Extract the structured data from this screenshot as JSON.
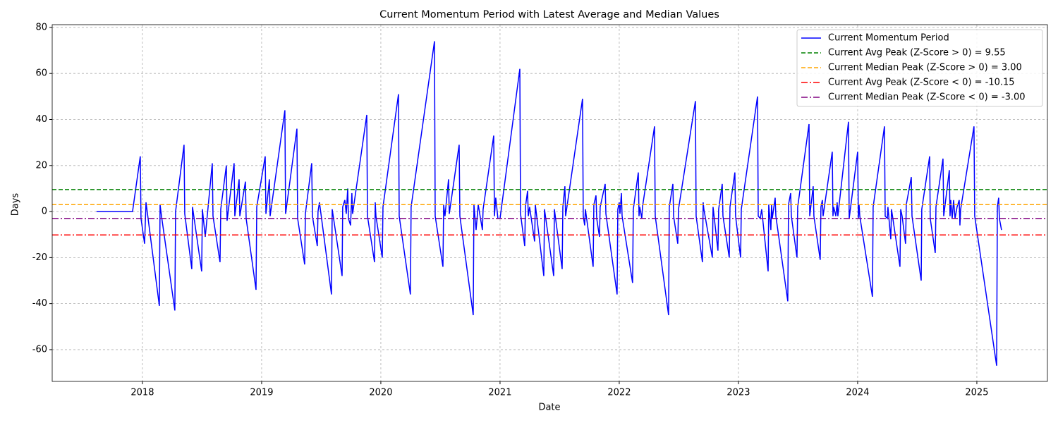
{
  "chart_data": {
    "type": "line",
    "title": "Current Momentum Period with Latest Average and Median Values",
    "xlabel": "Date",
    "ylabel": "Days",
    "xlim": [
      2017.243,
      2025.592
    ],
    "xticks": [
      2018,
      2019,
      2020,
      2021,
      2022,
      2023,
      2024,
      2025
    ],
    "ylim": [
      -73.8,
      81.2
    ],
    "yticks": [
      -60,
      -40,
      -20,
      0,
      20,
      40,
      60,
      80
    ],
    "grid": true,
    "legend": "upper right",
    "x": [
      2017.615,
      2017.917,
      2017.982,
      2017.988,
      2018.018,
      2018.03,
      2018.142,
      2018.148,
      2018.16,
      2018.272,
      2018.278,
      2018.349,
      2018.355,
      2018.414,
      2018.42,
      2018.497,
      2018.503,
      2018.527,
      2018.586,
      2018.592,
      2018.651,
      2018.657,
      2018.704,
      2018.71,
      2018.769,
      2018.775,
      2018.811,
      2018.817,
      2018.864,
      2018.87,
      2018.953,
      2018.959,
      2019.03,
      2019.036,
      2019.065,
      2019.071,
      2019.195,
      2019.201,
      2019.296,
      2019.302,
      2019.361,
      2019.367,
      2019.42,
      2019.426,
      2019.467,
      2019.473,
      2019.485,
      2019.586,
      2019.592,
      2019.675,
      2019.68,
      2019.698,
      2019.71,
      2019.722,
      2019.728,
      2019.746,
      2019.757,
      2019.763,
      2019.882,
      2019.888,
      2019.947,
      2019.953,
      2019.959,
      2020.012,
      2020.018,
      2020.148,
      2020.154,
      2020.248,
      2020.254,
      2020.45,
      2020.456,
      2020.521,
      2020.527,
      2020.538,
      2020.568,
      2020.574,
      2020.657,
      2020.663,
      2020.775,
      2020.781,
      2020.799,
      2020.817,
      2020.852,
      2020.858,
      2020.947,
      2020.953,
      2020.964,
      2020.982,
      2021.0,
      2021.166,
      2021.172,
      2021.207,
      2021.213,
      2021.231,
      2021.237,
      2021.248,
      2021.29,
      2021.296,
      2021.367,
      2021.373,
      2021.45,
      2021.456,
      2021.521,
      2021.527,
      2021.544,
      2021.55,
      2021.692,
      2021.698,
      2021.71,
      2021.716,
      2021.781,
      2021.787,
      2021.805,
      2021.811,
      2021.834,
      2021.84,
      2021.882,
      2021.888,
      2021.982,
      2021.988,
      2022.0,
      2022.006,
      2022.018,
      2022.024,
      2022.112,
      2022.118,
      2022.16,
      2022.166,
      2022.172,
      2022.189,
      2022.195,
      2022.296,
      2022.302,
      2022.414,
      2022.42,
      2022.45,
      2022.456,
      2022.491,
      2022.497,
      2022.639,
      2022.645,
      2022.698,
      2022.704,
      2022.71,
      2022.781,
      2022.787,
      2022.828,
      2022.834,
      2022.864,
      2022.87,
      2022.923,
      2022.929,
      2022.97,
      2022.976,
      2023.018,
      2023.024,
      2023.16,
      2023.166,
      2023.183,
      2023.195,
      2023.249,
      2023.254,
      2023.272,
      2023.278,
      2023.284,
      2023.308,
      2023.314,
      2023.414,
      2023.42,
      2023.438,
      2023.444,
      2023.491,
      2023.497,
      2023.592,
      2023.598,
      2023.627,
      2023.633,
      2023.686,
      2023.692,
      2023.704,
      2023.71,
      2023.787,
      2023.793,
      2023.799,
      2023.817,
      2023.828,
      2023.834,
      2023.923,
      2023.929,
      2024.0,
      2024.006,
      2024.012,
      2024.018,
      2024.124,
      2024.13,
      2024.225,
      2024.231,
      2024.249,
      2024.254,
      2024.278,
      2024.284,
      2024.355,
      2024.361,
      2024.373,
      2024.402,
      2024.408,
      2024.45,
      2024.456,
      2024.533,
      2024.538,
      2024.604,
      2024.609,
      2024.651,
      2024.657,
      2024.716,
      2024.722,
      2024.769,
      2024.775,
      2024.781,
      2024.793,
      2024.805,
      2024.817,
      2024.834,
      2024.852,
      2024.858,
      2024.864,
      2024.976,
      2024.982,
      2025.166,
      2025.172,
      2025.183,
      2025.189,
      2025.207
    ],
    "series": [
      {
        "name": "Current Momentum Period",
        "color": "#0000ff",
        "values": [
          0,
          0,
          24,
          -3,
          -14,
          4,
          -41,
          3,
          -2,
          -43,
          0,
          29,
          -1,
          -25,
          2,
          -26,
          1,
          -11,
          21,
          -2,
          -22,
          1,
          20,
          -4,
          21,
          -2,
          14,
          -2,
          13,
          -3,
          -34,
          2,
          24,
          -1,
          14,
          -2,
          44,
          -1,
          36,
          -3,
          -23,
          -1,
          21,
          -2,
          -15,
          0,
          4,
          -36,
          1,
          -28,
          2,
          5,
          -1,
          10,
          -3,
          -6,
          8,
          -1,
          42,
          -2,
          -22,
          4,
          -2,
          -20,
          2,
          51,
          -2,
          -36,
          2,
          74,
          -2,
          -24,
          3,
          -2,
          14,
          -1,
          29,
          -2,
          -45,
          3,
          -8,
          3,
          -8,
          1,
          33,
          -2,
          6,
          -3,
          -3,
          62,
          -1,
          -15,
          2,
          9,
          -2,
          2,
          -13,
          3,
          -28,
          1,
          -28,
          1,
          -25,
          2,
          11,
          -2,
          49,
          -2,
          -6,
          1,
          -24,
          3,
          7,
          -3,
          -11,
          2,
          12,
          -1,
          -36,
          1,
          4,
          -1,
          8,
          -2,
          -31,
          1,
          17,
          -2,
          2,
          -3,
          2,
          37,
          -2,
          -45,
          2,
          12,
          -2,
          -14,
          1,
          48,
          -2,
          -22,
          4,
          1,
          -20,
          2,
          -17,
          1,
          12,
          -2,
          -20,
          2,
          17,
          -2,
          -20,
          1,
          50,
          -2,
          -3,
          1,
          -26,
          3,
          -8,
          3,
          -3,
          6,
          -2,
          -39,
          3,
          8,
          -2,
          -20,
          2,
          38,
          -2,
          11,
          -2,
          -21,
          2,
          5,
          -2,
          26,
          -2,
          2,
          -2,
          4,
          -2,
          39,
          -3,
          26,
          -3,
          3,
          -2,
          -37,
          2,
          37,
          -2,
          -3,
          2,
          -12,
          1,
          -24,
          1,
          -2,
          -14,
          3,
          15,
          -2,
          -30,
          1,
          24,
          -3,
          -18,
          2,
          23,
          -2,
          18,
          -2,
          5,
          -3,
          5,
          -3,
          2,
          5,
          -6,
          1,
          37,
          -2,
          -67,
          2,
          6,
          -3,
          -8
        ]
      }
    ],
    "hlines": [
      {
        "name": "Current Avg Peak (Z-Score > 0) = 9.55",
        "color": "#008000",
        "y": 9.55,
        "style": "dashed"
      },
      {
        "name": "Current Median Peak (Z-Score > 0) = 3.00",
        "color": "#ffa500",
        "y": 3.0,
        "style": "dashed"
      },
      {
        "name": "Current Avg Peak (Z-Score < 0) = -10.15",
        "color": "#ff0000",
        "y": -10.15,
        "style": "dashdot"
      },
      {
        "name": "Current Median Peak (Z-Score < 0) = -3.00",
        "color": "#800080",
        "y": -3.0,
        "style": "dashdot"
      }
    ]
  }
}
